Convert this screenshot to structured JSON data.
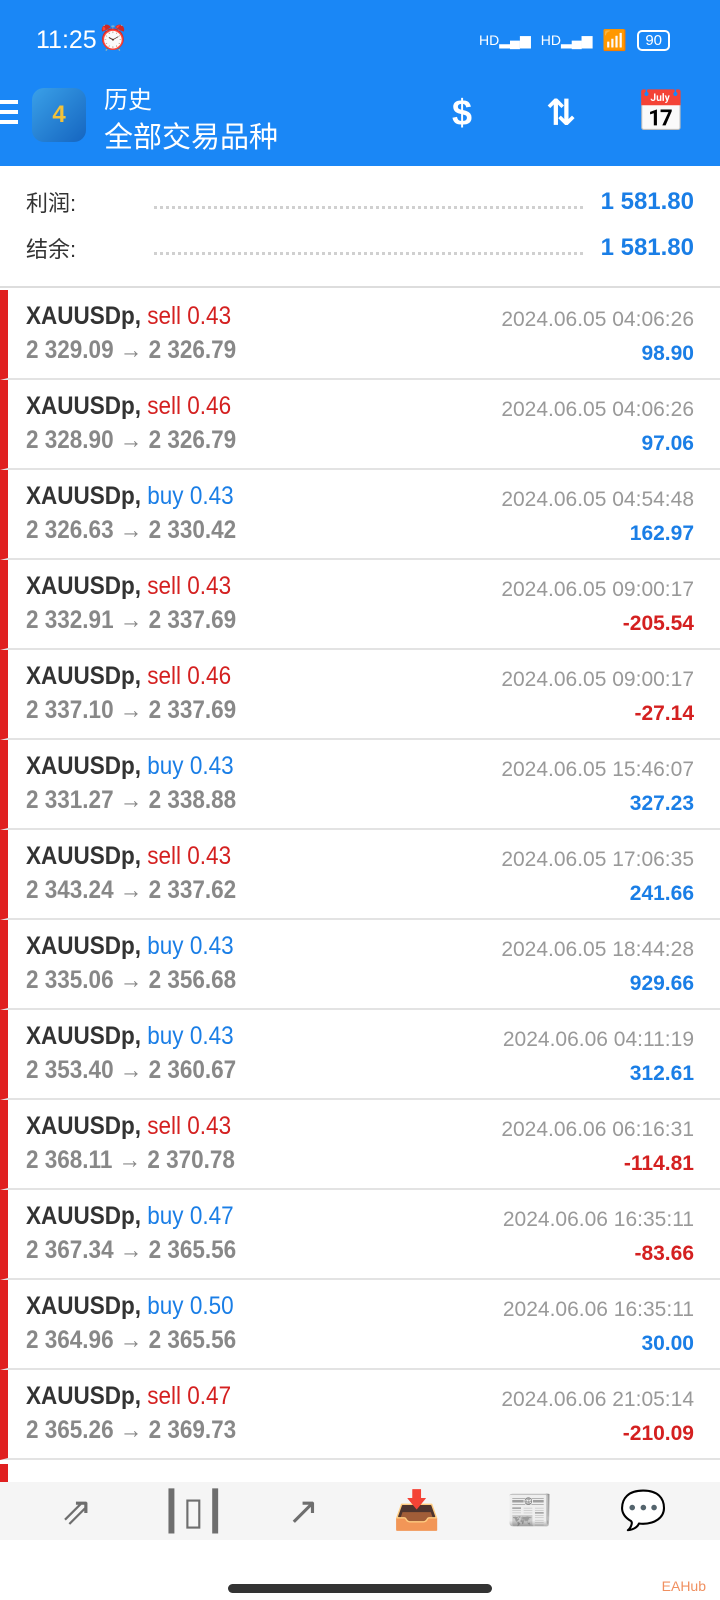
{
  "status_bar": {
    "time": "11:25",
    "signal": "HD",
    "battery": "90"
  },
  "header": {
    "title": "历史",
    "subtitle": "全部交易品种",
    "logo": "MT4",
    "icons": [
      "currency-exchange-icon",
      "sort-icon",
      "calendar-icon"
    ]
  },
  "summary": [
    {
      "label": "利润:",
      "value": "1 581.80"
    },
    {
      "label": "结余:",
      "value": "1 581.80"
    }
  ],
  "colors": {
    "accent": "#1a87f6",
    "sell": "#d42020",
    "buy": "#1a7ee6"
  },
  "trades": [
    {
      "symbol": "XAUUSDp,",
      "side": "sell",
      "volume": "0.43",
      "prices": "2 329.09 → 2 326.79",
      "time": "2024.06.05 04:06:26",
      "profit": "98.90"
    },
    {
      "symbol": "XAUUSDp,",
      "side": "sell",
      "volume": "0.46",
      "prices": "2 328.90 → 2 326.79",
      "time": "2024.06.05 04:06:26",
      "profit": "97.06"
    },
    {
      "symbol": "XAUUSDp,",
      "side": "buy",
      "volume": "0.43",
      "prices": "2 326.63 → 2 330.42",
      "time": "2024.06.05 04:54:48",
      "profit": "162.97"
    },
    {
      "symbol": "XAUUSDp,",
      "side": "sell",
      "volume": "0.43",
      "prices": "2 332.91 → 2 337.69",
      "time": "2024.06.05 09:00:17",
      "profit": "-205.54"
    },
    {
      "symbol": "XAUUSDp,",
      "side": "sell",
      "volume": "0.46",
      "prices": "2 337.10 → 2 337.69",
      "time": "2024.06.05 09:00:17",
      "profit": "-27.14"
    },
    {
      "symbol": "XAUUSDp,",
      "side": "buy",
      "volume": "0.43",
      "prices": "2 331.27 → 2 338.88",
      "time": "2024.06.05 15:46:07",
      "profit": "327.23"
    },
    {
      "symbol": "XAUUSDp,",
      "side": "sell",
      "volume": "0.43",
      "prices": "2 343.24 → 2 337.62",
      "time": "2024.06.05 17:06:35",
      "profit": "241.66"
    },
    {
      "symbol": "XAUUSDp,",
      "side": "buy",
      "volume": "0.43",
      "prices": "2 335.06 → 2 356.68",
      "time": "2024.06.05 18:44:28",
      "profit": "929.66"
    },
    {
      "symbol": "XAUUSDp,",
      "side": "buy",
      "volume": "0.43",
      "prices": "2 353.40 → 2 360.67",
      "time": "2024.06.06 04:11:19",
      "profit": "312.61"
    },
    {
      "symbol": "XAUUSDp,",
      "side": "sell",
      "volume": "0.43",
      "prices": "2 368.11 → 2 370.78",
      "time": "2024.06.06 06:16:31",
      "profit": "-114.81"
    },
    {
      "symbol": "XAUUSDp,",
      "side": "buy",
      "volume": "0.47",
      "prices": "2 367.34 → 2 365.56",
      "time": "2024.06.06 16:35:11",
      "profit": "-83.66"
    },
    {
      "symbol": "XAUUSDp,",
      "side": "buy",
      "volume": "0.50",
      "prices": "2 364.96 → 2 365.56",
      "time": "2024.06.06 16:35:11",
      "profit": "30.00"
    },
    {
      "symbol": "XAUUSDp,",
      "side": "sell",
      "volume": "0.47",
      "prices": "2 365.26 → 2 369.73",
      "time": "2024.06.06 21:05:14",
      "profit": "-210.09"
    }
  ],
  "nav": [
    {
      "icon": "trade-icon"
    },
    {
      "icon": "candlestick-chart-icon"
    },
    {
      "icon": "trend-icon"
    },
    {
      "icon": "history-inbox-icon",
      "active": true
    },
    {
      "icon": "news-icon"
    },
    {
      "icon": "chat-icon"
    }
  ],
  "watermark": "EAHub"
}
